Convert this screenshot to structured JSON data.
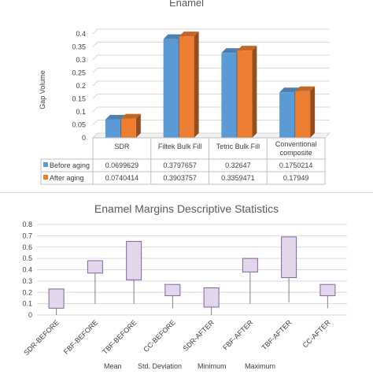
{
  "chart_data": [
    {
      "type": "bar",
      "title": "Enamel",
      "ylabel": "Gap Volume",
      "ylim": [
        0,
        0.4
      ],
      "yticks": [
        "0",
        "0.05",
        "0.1",
        "0.15",
        "0.2",
        "0.25",
        "0.3",
        "0.35",
        "0.4"
      ],
      "categories": [
        "SDR",
        "Filtek Bulk Fill",
        "Tetric Bulk Fill",
        "Conventional composite"
      ],
      "series": [
        {
          "name": "Before aging",
          "color": "#5b9bd5",
          "values": [
            0.0699629,
            0.3797657,
            0.32647,
            0.1750214
          ]
        },
        {
          "name": "After aging",
          "color": "#ed7d31",
          "values": [
            0.0740414,
            0.3903757,
            0.3359471,
            0.17949
          ]
        }
      ],
      "table_values": [
        [
          "0.0699629",
          "0.3797657",
          "0.32647",
          "0.1750214"
        ],
        [
          "0.0740414",
          "0.3903757",
          "0.3359471",
          "0.17949"
        ]
      ],
      "legend": "data-table"
    },
    {
      "type": "box",
      "title": "Enamel Margins Descriptive Statistics",
      "ylim": [
        0,
        0.8
      ],
      "yticks": [
        "0",
        "0.1",
        "0.2",
        "0.3",
        "0.4",
        "0.5",
        "0.6",
        "0.7",
        "0.8"
      ],
      "categories": [
        "SDR-BEFORE",
        "FBF-BEFORE",
        "TBF-BEFORE",
        "CC-BEFORE",
        "SDR-AFTER",
        "FBF-AFTER",
        "TBF-AFTER",
        "CC-AFTER"
      ],
      "boxes": [
        {
          "low": 0.0,
          "box_low": 0.06,
          "box_high": 0.23
        },
        {
          "low": 0.1,
          "box_low": 0.37,
          "box_high": 0.48
        },
        {
          "low": 0.1,
          "box_low": 0.31,
          "box_high": 0.65
        },
        {
          "low": 0.06,
          "box_low": 0.17,
          "box_high": 0.27
        },
        {
          "low": 0.0,
          "box_low": 0.07,
          "box_high": 0.24
        },
        {
          "low": 0.1,
          "box_low": 0.38,
          "box_high": 0.5
        },
        {
          "low": 0.11,
          "box_low": 0.33,
          "box_high": 0.69
        },
        {
          "low": 0.06,
          "box_low": 0.17,
          "box_high": 0.27
        }
      ],
      "box_fill": "#e3d5ea",
      "box_stroke": "#8064a2",
      "legend": [
        "Mean",
        "Std. Deviation",
        "Minimum",
        "Maximum"
      ]
    }
  ]
}
